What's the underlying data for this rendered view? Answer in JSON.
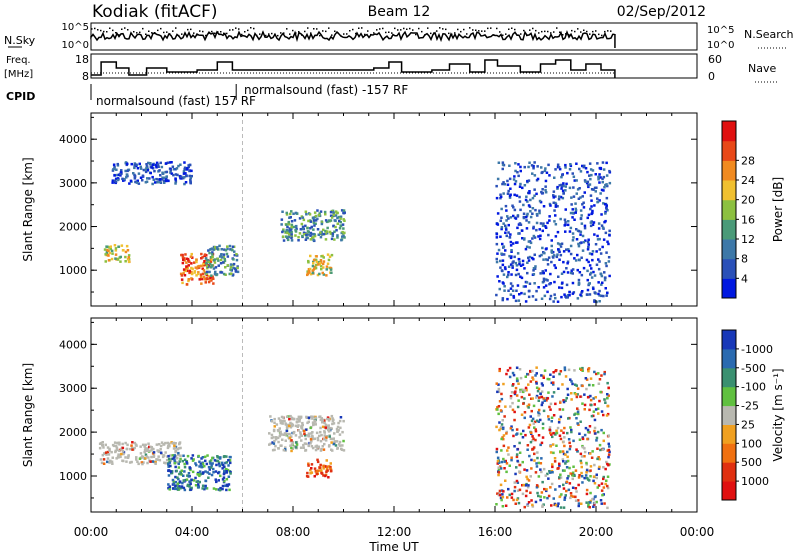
{
  "header": {
    "site": "Kodiak (fitACF)",
    "beam": "Beam 12",
    "date": "02/Sep/2012"
  },
  "strip": {
    "nsky_label": "N.Sky",
    "nsearch_label": "N.Search",
    "nsky_ticks": [
      "10^5",
      "10^0"
    ],
    "nsearch_ticks": [
      "10^5",
      "10^0"
    ],
    "freq_label_top": "Freq.",
    "freq_label_unit": "[MHz]",
    "freq_ticks": [
      "18",
      "8"
    ],
    "nave_label": "Nave",
    "nave_ticks": [
      "60",
      "0"
    ],
    "cpid_label": "CPID",
    "cpid_mode1": "normalsound (fast) 157 RF",
    "cpid_mode2": "normalsound (fast) -157 RF"
  },
  "chart_data": [
    {
      "type": "heatmap",
      "title": "",
      "ylabel": "Slant Range [km]",
      "ylim": [
        180,
        4600
      ],
      "y_ticks": [
        "1000",
        "2000",
        "3000",
        "4000"
      ],
      "x": [
        "00:00",
        "04:00",
        "08:00",
        "12:00",
        "16:00",
        "20:00",
        "00:00"
      ],
      "colorbar": {
        "label": "Power [dB]",
        "ticks": [
          "4",
          "8",
          "12",
          "16",
          "20",
          "24",
          "28"
        ],
        "colors": [
          "#0018e0",
          "#2a50b8",
          "#3d78a8",
          "#4a9a78",
          "#8cc040",
          "#f0c030",
          "#f08a20",
          "#e84818",
          "#e01010"
        ]
      },
      "regions": [
        {
          "t": [
            0.8,
            4.0
          ],
          "r": [
            3000,
            3500
          ],
          "level": "low"
        },
        {
          "t": [
            0.5,
            1.5
          ],
          "r": [
            1200,
            1600
          ],
          "level": "high"
        },
        {
          "t": [
            3.5,
            4.8
          ],
          "r": [
            700,
            1400
          ],
          "level": "very-high"
        },
        {
          "t": [
            4.5,
            5.8
          ],
          "r": [
            900,
            1600
          ],
          "level": "mid"
        },
        {
          "t": [
            7.5,
            10.0
          ],
          "r": [
            1700,
            2400
          ],
          "level": "mid"
        },
        {
          "t": [
            8.5,
            9.5
          ],
          "r": [
            900,
            1400
          ],
          "level": "high"
        },
        {
          "t": [
            16.0,
            20.5
          ],
          "r": [
            300,
            3500
          ],
          "level": "low"
        }
      ]
    },
    {
      "type": "heatmap",
      "title": "",
      "ylabel": "Slant Range [km]",
      "ylim": [
        180,
        4600
      ],
      "y_ticks": [
        "1000",
        "2000",
        "3000",
        "4000"
      ],
      "x": [
        "00:00",
        "04:00",
        "08:00",
        "12:00",
        "16:00",
        "20:00",
        "00:00"
      ],
      "xlabel": "Time UT",
      "colorbar": {
        "label": "Velocity [m s⁻¹]",
        "ticks": [
          "1000",
          "500",
          "100",
          "25",
          "-25",
          "-100",
          "-500",
          "-1000"
        ],
        "colors": [
          "#1838b8",
          "#2a6ab0",
          "#3a9070",
          "#60c040",
          "#b8b8b0",
          "#f0a020",
          "#f07010",
          "#e03010",
          "#e01010"
        ]
      },
      "regions": [
        {
          "t": [
            0.3,
            3.5
          ],
          "r": [
            1300,
            1800
          ],
          "level": "ground"
        },
        {
          "t": [
            3.0,
            5.5
          ],
          "r": [
            700,
            1500
          ],
          "level": "positive"
        },
        {
          "t": [
            7.0,
            10.0
          ],
          "r": [
            1600,
            2400
          ],
          "level": "ground"
        },
        {
          "t": [
            8.5,
            9.5
          ],
          "r": [
            1000,
            1400
          ],
          "level": "negative"
        },
        {
          "t": [
            16.0,
            20.5
          ],
          "r": [
            300,
            3500
          ],
          "level": "mixed"
        }
      ]
    }
  ]
}
